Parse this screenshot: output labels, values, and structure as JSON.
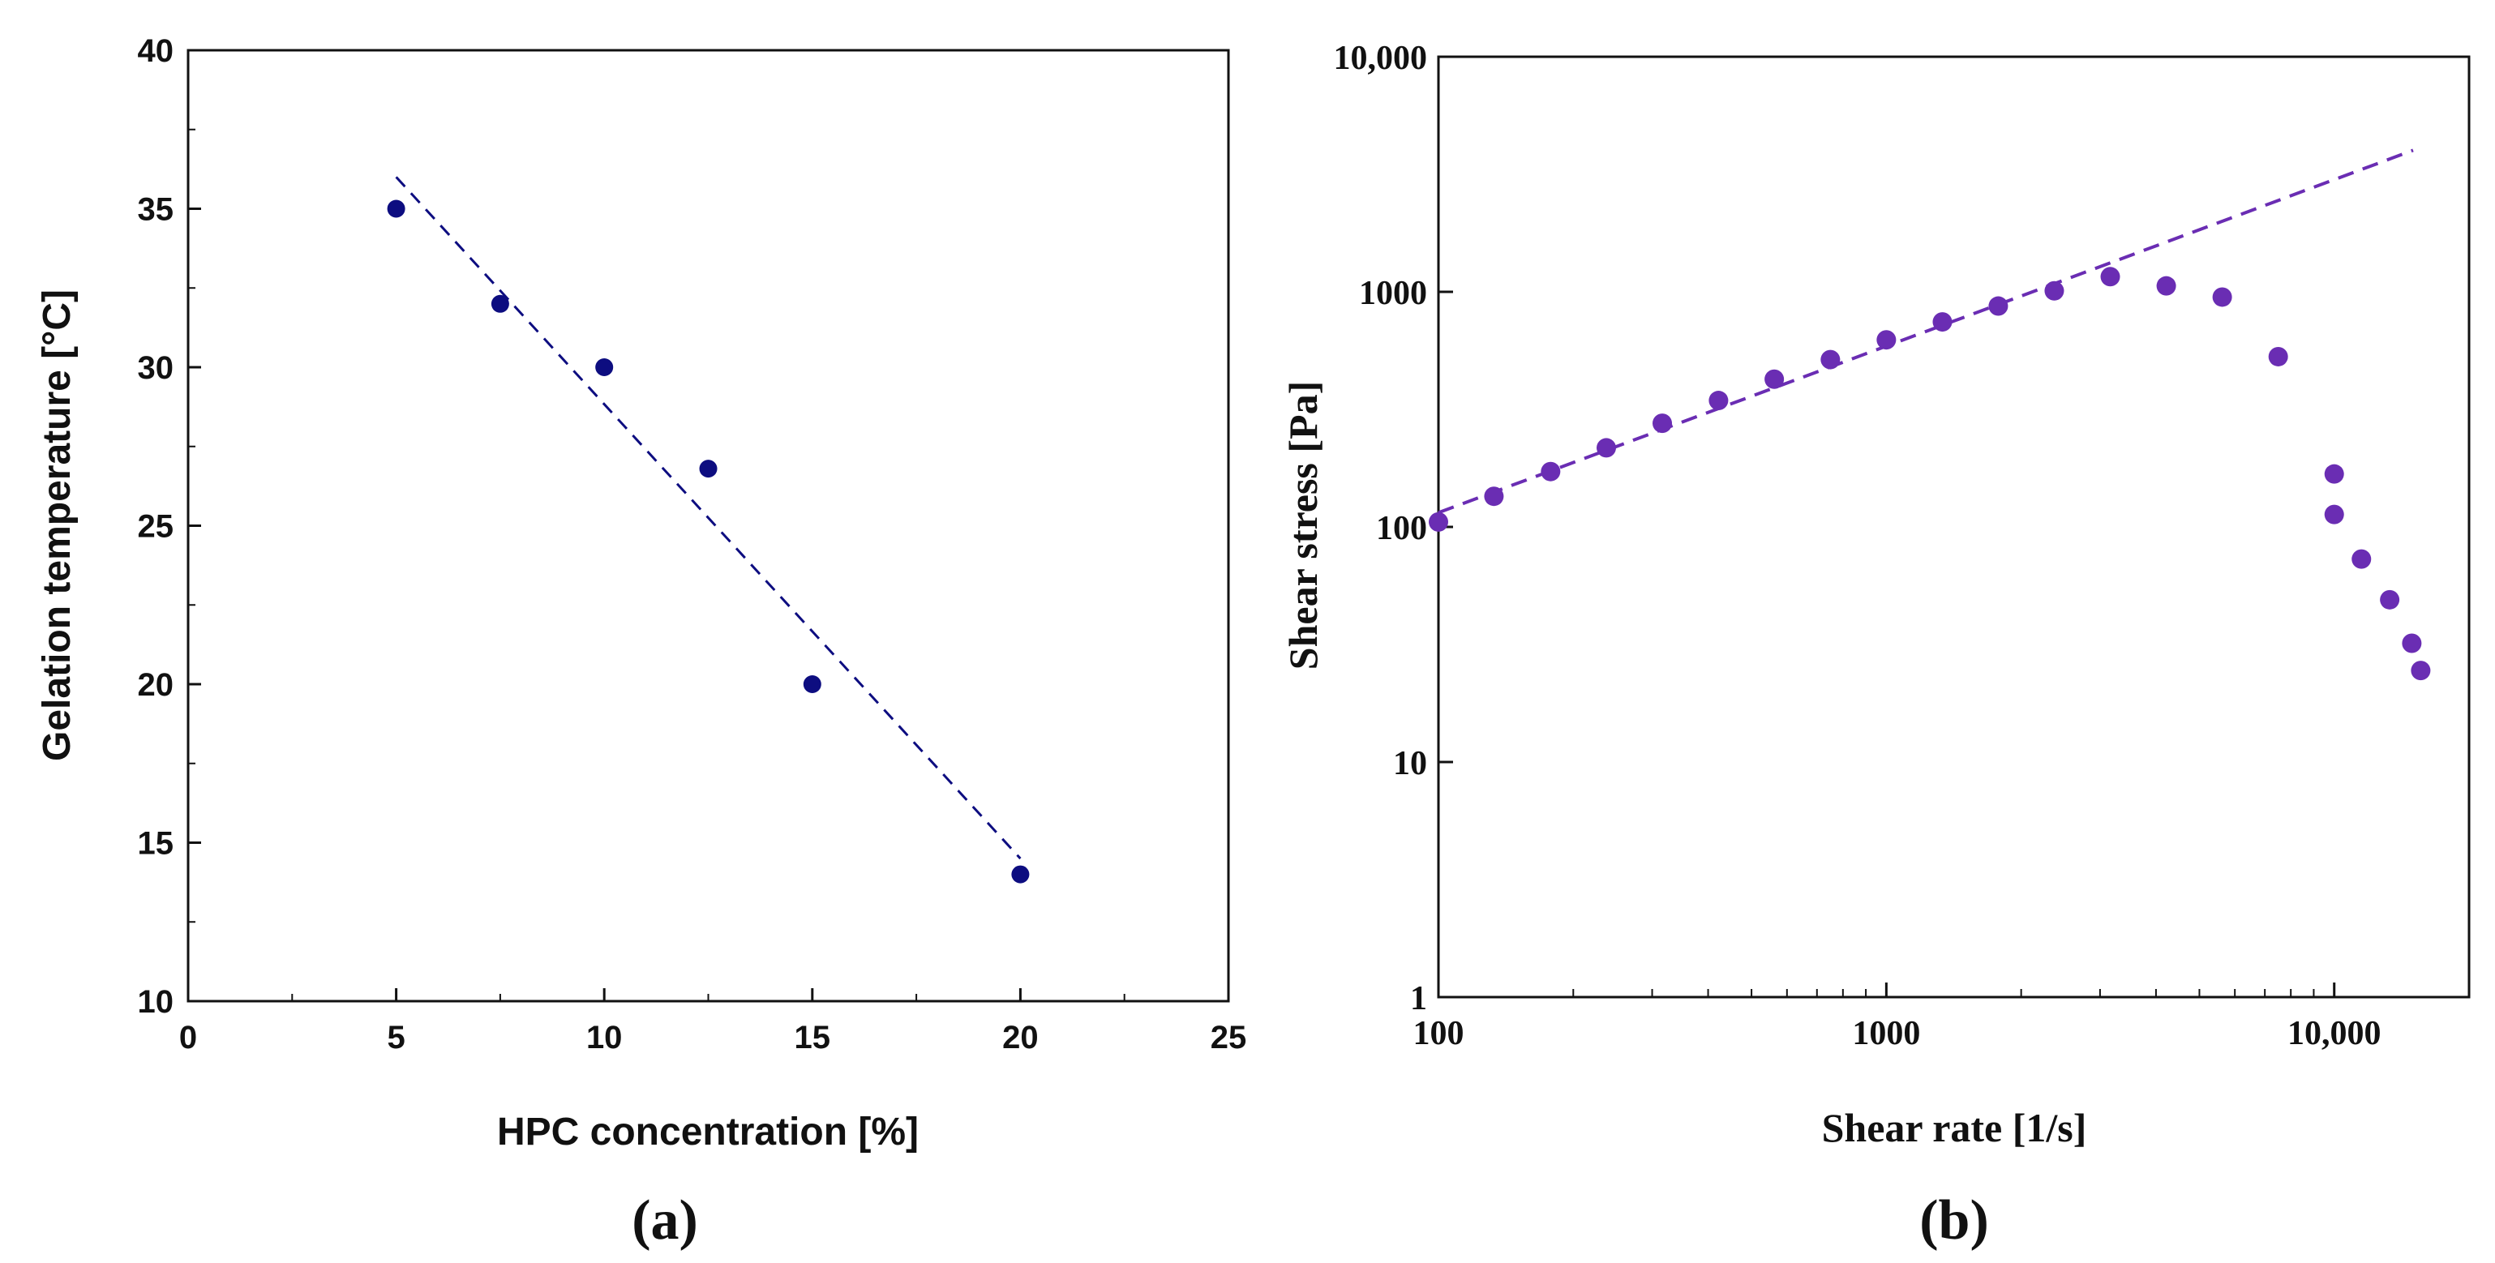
{
  "colors": {
    "series_a": "#0d0d80",
    "series_b": "#6a2db3",
    "axis": "#111111"
  },
  "chart_data": [
    {
      "panel": "(a)",
      "type": "scatter",
      "xlabel": "HPC concentration [%]",
      "ylabel": "Gelation temperature [°C]",
      "xlim": [
        0,
        25
      ],
      "ylim": [
        10,
        40
      ],
      "xticks": [
        "0",
        "5",
        "10",
        "15",
        "20",
        "25"
      ],
      "yticks": [
        "10",
        "15",
        "20",
        "25",
        "30",
        "35",
        "40"
      ],
      "grid": false,
      "series": [
        {
          "x": [
            5,
            7.5,
            10,
            12.5,
            15,
            20
          ],
          "y": [
            35,
            32,
            30,
            26.8,
            20,
            14
          ]
        }
      ],
      "fit_line": {
        "style": "dashed",
        "x": [
          5,
          20
        ],
        "y": [
          36,
          14.5
        ]
      }
    },
    {
      "panel": "(b)",
      "type": "scatter",
      "xlabel": "Shear rate [1/s]",
      "ylabel": "Shear stress [Pa]",
      "xscale": "log",
      "yscale": "log",
      "xlim": [
        100,
        20000
      ],
      "ylim": [
        1,
        10000
      ],
      "xticks": [
        "100",
        "1000",
        "10,000"
      ],
      "yticks": [
        "1",
        "10",
        "100",
        "1000",
        "10,000"
      ],
      "grid": false,
      "series": [
        {
          "x": [
            100,
            133,
            178,
            237,
            316,
            422,
            562,
            750,
            1000,
            1334,
            1778,
            2371,
            3162,
            4217,
            5623,
            7499,
            10000,
            10000,
            11500,
            13300,
            14900,
            15600
          ],
          "y": [
            105,
            135,
            172,
            217,
            276,
            345,
            425,
            515,
            625,
            745,
            870,
            1010,
            1160,
            1060,
            950,
            530,
            168,
            113,
            73,
            49,
            32,
            24.5
          ]
        }
      ],
      "fit_line": {
        "style": "dashed",
        "x": [
          100,
          15000
        ],
        "y": [
          115,
          4000
        ]
      }
    }
  ]
}
